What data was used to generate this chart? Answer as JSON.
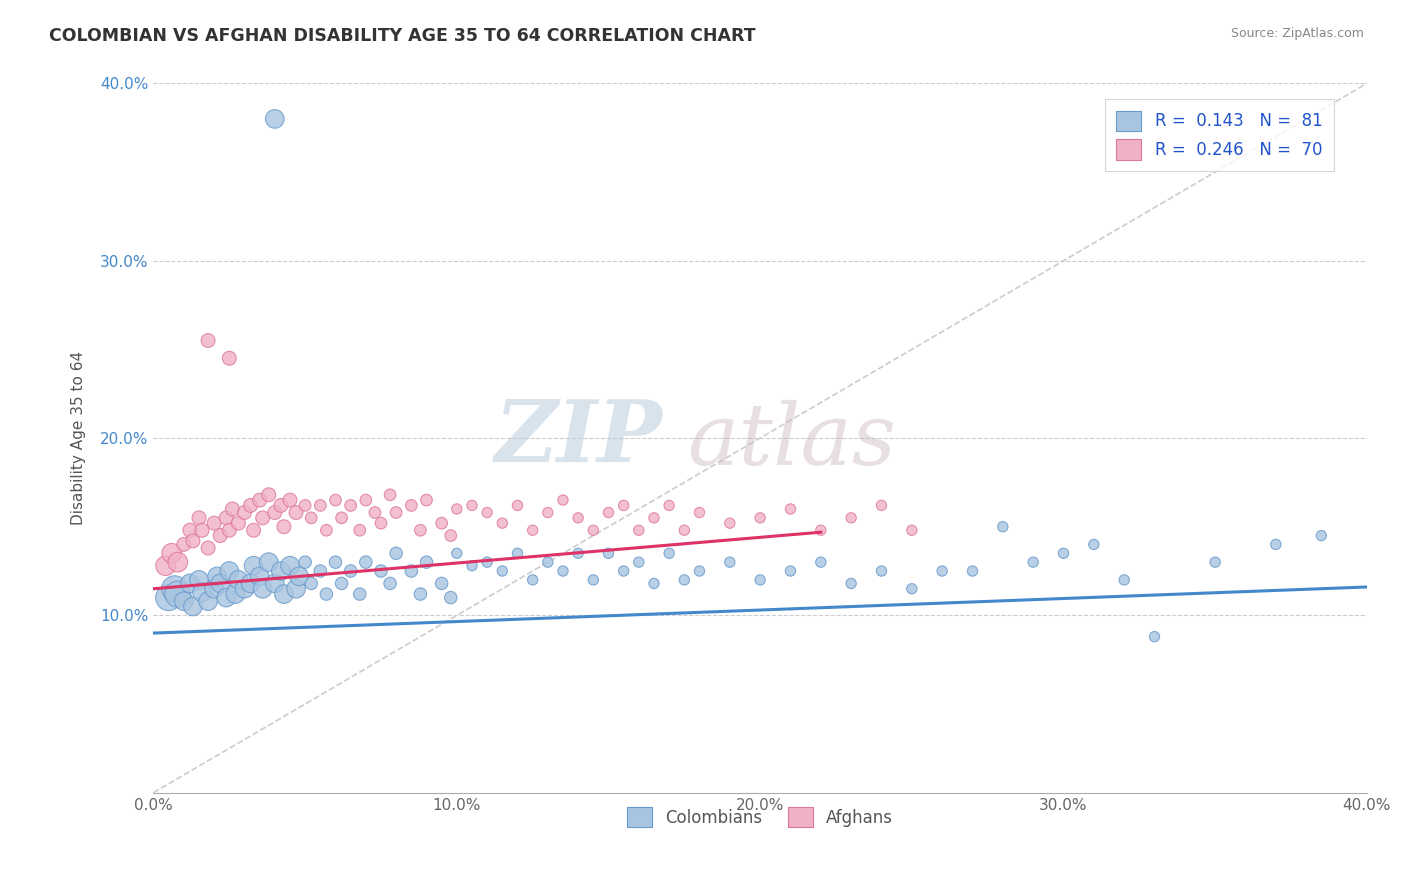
{
  "title": "COLOMBIAN VS AFGHAN DISABILITY AGE 35 TO 64 CORRELATION CHART",
  "source": "Source: ZipAtlas.com",
  "ylabel": "Disability Age 35 to 64",
  "xlim": [
    0.0,
    0.4
  ],
  "ylim": [
    0.0,
    0.4
  ],
  "xtick_vals": [
    0.0,
    0.1,
    0.2,
    0.3,
    0.4
  ],
  "ytick_vals": [
    0.1,
    0.2,
    0.3,
    0.4
  ],
  "colombian_color": "#a8c4e0",
  "colombian_edge": "#6699cc",
  "afghan_color": "#f0b0c8",
  "afghan_edge": "#dd7799",
  "trendline_colombian": "#4488cc",
  "trendline_afghan": "#dd3366",
  "diagonal_color": "#cccccc",
  "watermark_zip": "ZIP",
  "watermark_atlas": "atlas",
  "background_color": "#ffffff",
  "grid_color": "#cccccc",
  "r_col": "0.143",
  "n_col": "81",
  "r_afg": "0.246",
  "n_afg": "70",
  "col_intercept": 0.09,
  "col_slope": 0.065,
  "afg_intercept": 0.115,
  "afg_slope": 0.145
}
